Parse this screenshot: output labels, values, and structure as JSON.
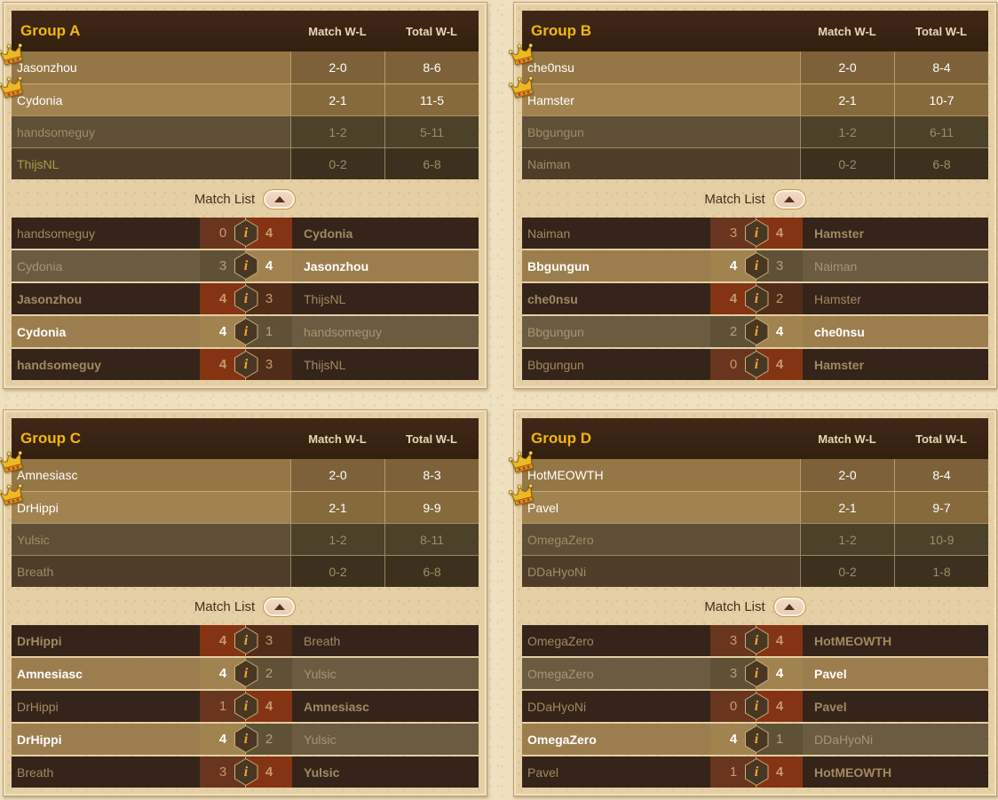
{
  "labels": {
    "match_wl": "Match W-L",
    "total_wl": "Total W-L",
    "match_list": "Match List",
    "info_glyph": "i"
  },
  "colors": {
    "accent_gold": "#f2b70a",
    "winner_rust": "#843413",
    "qualified_row_tan": "#a28350",
    "eliminated_row_olive": "#5d5037",
    "header_brown": "#3a2415",
    "parchment": "#e5d0a5"
  },
  "groups": [
    {
      "title": "Group A",
      "standings": [
        {
          "player": "Jasonzhou",
          "match_wl": "2-0",
          "total_wl": "8-6",
          "qualified": true,
          "crown": true
        },
        {
          "player": "Cydonia",
          "match_wl": "2-1",
          "total_wl": "11-5",
          "qualified": true,
          "crown": true
        },
        {
          "player": "handsomeguy",
          "match_wl": "1-2",
          "total_wl": "5-11",
          "qualified": false
        },
        {
          "player": "ThijsNL",
          "match_wl": "0-2",
          "total_wl": "6-8",
          "qualified": false,
          "gold_name": true
        }
      ],
      "matches": [
        {
          "left": "handsomeguy",
          "left_score": 0,
          "right_score": 4,
          "right": "Cydonia",
          "winner": "right"
        },
        {
          "left": "Cydonia",
          "left_score": 3,
          "right_score": 4,
          "right": "Jasonzhou",
          "winner": "right"
        },
        {
          "left": "Jasonzhou",
          "left_score": 4,
          "right_score": 3,
          "right": "ThijsNL",
          "winner": "left"
        },
        {
          "left": "Cydonia",
          "left_score": 4,
          "right_score": 1,
          "right": "handsomeguy",
          "winner": "left"
        },
        {
          "left": "handsomeguy",
          "left_score": 4,
          "right_score": 3,
          "right": "ThijsNL",
          "winner": "left"
        }
      ]
    },
    {
      "title": "Group B",
      "standings": [
        {
          "player": "che0nsu",
          "match_wl": "2-0",
          "total_wl": "8-4",
          "qualified": true,
          "crown": true
        },
        {
          "player": "Hamster",
          "match_wl": "2-1",
          "total_wl": "10-7",
          "qualified": true,
          "crown": true
        },
        {
          "player": "Bbgungun",
          "match_wl": "1-2",
          "total_wl": "6-11",
          "qualified": false
        },
        {
          "player": "Naiman",
          "match_wl": "0-2",
          "total_wl": "6-8",
          "qualified": false
        }
      ],
      "matches": [
        {
          "left": "Naiman",
          "left_score": 3,
          "right_score": 4,
          "right": "Hamster",
          "winner": "right"
        },
        {
          "left": "Bbgungun",
          "left_score": 4,
          "right_score": 3,
          "right": "Naiman",
          "winner": "left"
        },
        {
          "left": "che0nsu",
          "left_score": 4,
          "right_score": 2,
          "right": "Hamster",
          "winner": "left"
        },
        {
          "left": "Bbgungun",
          "left_score": 2,
          "right_score": 4,
          "right": "che0nsu",
          "winner": "right"
        },
        {
          "left": "Bbgungun",
          "left_score": 0,
          "right_score": 4,
          "right": "Hamster",
          "winner": "right"
        }
      ]
    },
    {
      "title": "Group C",
      "standings": [
        {
          "player": "Amnesiasc",
          "match_wl": "2-0",
          "total_wl": "8-3",
          "qualified": true,
          "crown": true
        },
        {
          "player": "DrHippi",
          "match_wl": "2-1",
          "total_wl": "9-9",
          "qualified": true,
          "crown": true
        },
        {
          "player": "Yulsic",
          "match_wl": "1-2",
          "total_wl": "8-11",
          "qualified": false
        },
        {
          "player": "Breath",
          "match_wl": "0-2",
          "total_wl": "6-8",
          "qualified": false
        }
      ],
      "matches": [
        {
          "left": "DrHippi",
          "left_score": 4,
          "right_score": 3,
          "right": "Breath",
          "winner": "left"
        },
        {
          "left": "Amnesiasc",
          "left_score": 4,
          "right_score": 2,
          "right": "Yulsic",
          "winner": "left"
        },
        {
          "left": "DrHippi",
          "left_score": 1,
          "right_score": 4,
          "right": "Amnesiasc",
          "winner": "right"
        },
        {
          "left": "DrHippi",
          "left_score": 4,
          "right_score": 2,
          "right": "Yulsic",
          "winner": "left"
        },
        {
          "left": "Breath",
          "left_score": 3,
          "right_score": 4,
          "right": "Yulsic",
          "winner": "right"
        }
      ]
    },
    {
      "title": "Group D",
      "standings": [
        {
          "player": "HotMEOWTH",
          "match_wl": "2-0",
          "total_wl": "8-4",
          "qualified": true,
          "crown": true
        },
        {
          "player": "Pavel",
          "match_wl": "2-1",
          "total_wl": "9-7",
          "qualified": true,
          "crown": true
        },
        {
          "player": "OmegaZero",
          "match_wl": "1-2",
          "total_wl": "10-9",
          "qualified": false
        },
        {
          "player": "DDaHyoNi",
          "match_wl": "0-2",
          "total_wl": "1-8",
          "qualified": false
        }
      ],
      "matches": [
        {
          "left": "OmegaZero",
          "left_score": 3,
          "right_score": 4,
          "right": "HotMEOWTH",
          "winner": "right"
        },
        {
          "left": "OmegaZero",
          "left_score": 3,
          "right_score": 4,
          "right": "Pavel",
          "winner": "right"
        },
        {
          "left": "DDaHyoNi",
          "left_score": 0,
          "right_score": 4,
          "right": "Pavel",
          "winner": "right"
        },
        {
          "left": "OmegaZero",
          "left_score": 4,
          "right_score": 1,
          "right": "DDaHyoNi",
          "winner": "left"
        },
        {
          "left": "Pavel",
          "left_score": 1,
          "right_score": 4,
          "right": "HotMEOWTH",
          "winner": "right"
        }
      ]
    }
  ]
}
